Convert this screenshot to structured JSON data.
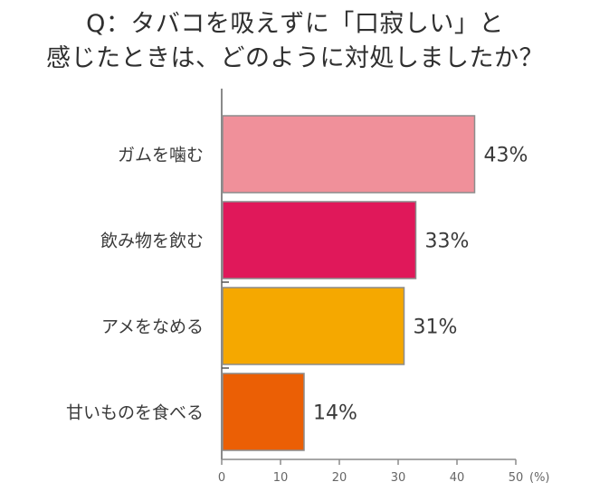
{
  "chart_data": {
    "type": "bar",
    "orientation": "horizontal",
    "title_lines": [
      "Q：タバコを吸えずに「口寂しい」と",
      "感じたときは、どのように対処しましたか？"
    ],
    "categories": [
      "ガムを噛む",
      "飲み物を飲む",
      "アメをなめる",
      "甘いものを食べる"
    ],
    "values": [
      43,
      33,
      31,
      14
    ],
    "value_labels": [
      "43%",
      "33%",
      "31%",
      "14%"
    ],
    "colors": [
      "#f0909a",
      "#e0185a",
      "#f5a800",
      "#eb5f05"
    ],
    "xlim": [
      0,
      50
    ],
    "xticks": [
      0,
      10,
      20,
      30,
      40,
      50
    ],
    "tick_labels": [
      "0",
      "10",
      "20",
      "30",
      "40",
      "50"
    ],
    "unit_label": "(%)",
    "grid": false
  }
}
